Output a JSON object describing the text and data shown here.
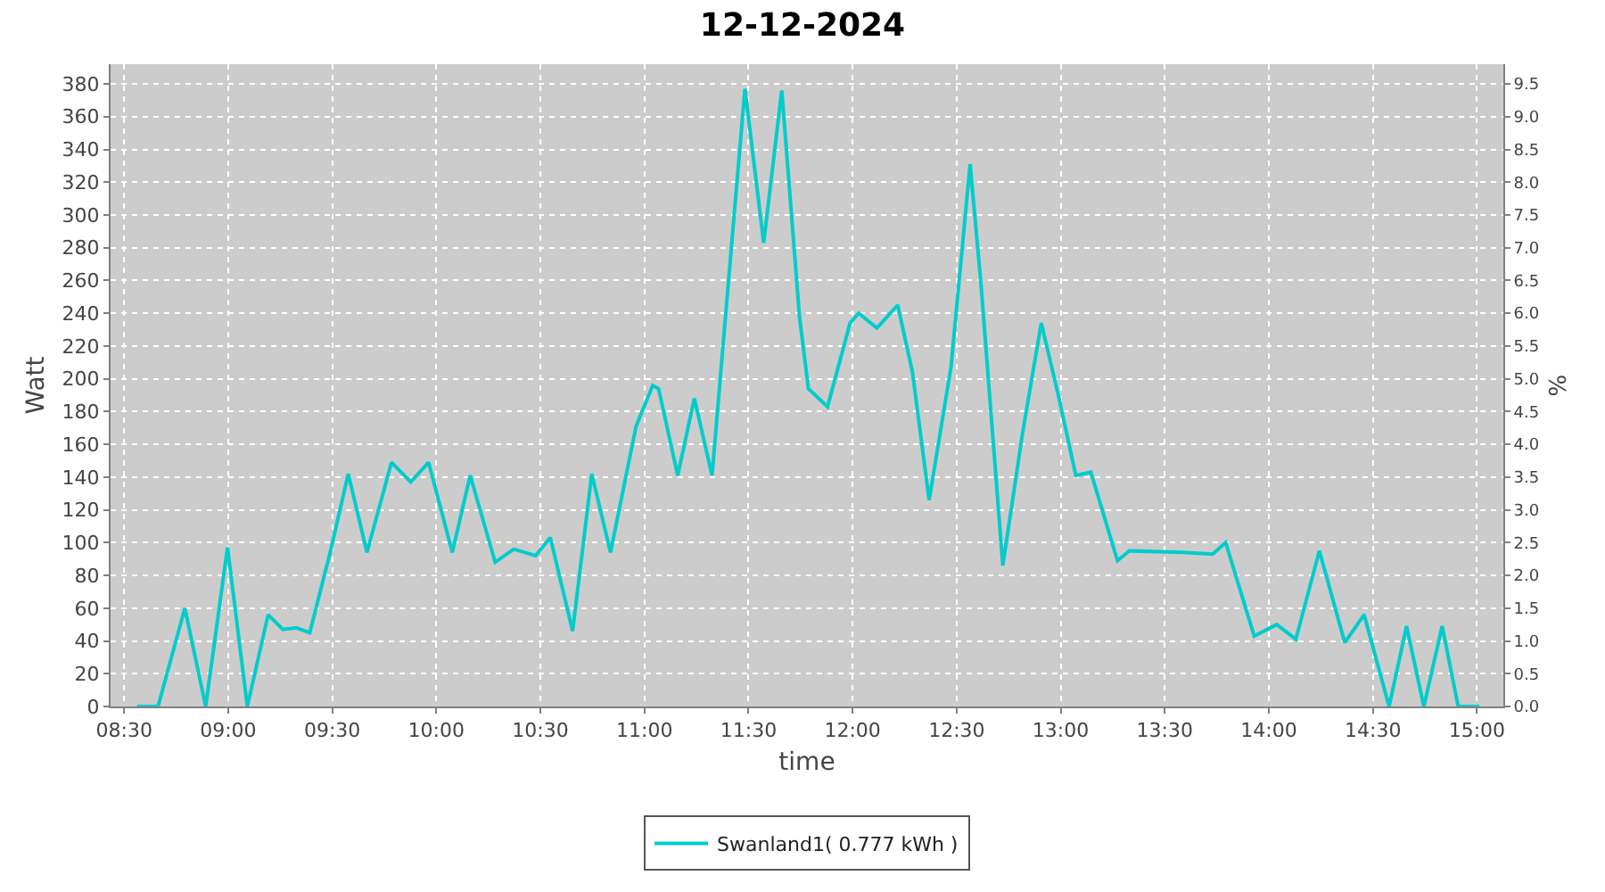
{
  "chart_data": {
    "type": "line",
    "title": "12-12-2024",
    "xlabel": "time",
    "ylabel": "Watt",
    "y2label": "%",
    "xlim": [
      8.435,
      15.127
    ],
    "xticks": [
      {
        "value": 8.5,
        "label": "08:30"
      },
      {
        "value": 9,
        "label": "09:00"
      },
      {
        "value": 9.5,
        "label": "09:30"
      },
      {
        "value": 10,
        "label": "10:00"
      },
      {
        "value": 10.5,
        "label": "10:30"
      },
      {
        "value": 11,
        "label": "11:00"
      },
      {
        "value": 11.5,
        "label": "11:30"
      },
      {
        "value": 12,
        "label": "12:00"
      },
      {
        "value": 12.5,
        "label": "12:30"
      },
      {
        "value": 13,
        "label": "13:00"
      },
      {
        "value": 13.5,
        "label": "13:30"
      },
      {
        "value": 14,
        "label": "14:00"
      },
      {
        "value": 14.5,
        "label": "14:30"
      },
      {
        "value": 15,
        "label": "15:00"
      }
    ],
    "ylim": [
      0,
      392
    ],
    "yticks": [
      0,
      20,
      40,
      60,
      80,
      100,
      120,
      140,
      160,
      180,
      200,
      220,
      240,
      260,
      280,
      300,
      320,
      340,
      360,
      380
    ],
    "y2lim": [
      0,
      9.8
    ],
    "y2ticks": [
      {
        "value": 0,
        "label": "0.0"
      },
      {
        "value": 0.5,
        "label": "0.5"
      },
      {
        "value": 1,
        "label": "1.0"
      },
      {
        "value": 1.5,
        "label": "1.5"
      },
      {
        "value": 2,
        "label": "2.0"
      },
      {
        "value": 2.5,
        "label": "2.5"
      },
      {
        "value": 3,
        "label": "3.0"
      },
      {
        "value": 3.5,
        "label": "3.5"
      },
      {
        "value": 4,
        "label": "4.0"
      },
      {
        "value": 4.5,
        "label": "4.5"
      },
      {
        "value": 5,
        "label": "5.0"
      },
      {
        "value": 5.5,
        "label": "5.5"
      },
      {
        "value": 6,
        "label": "6.0"
      },
      {
        "value": 6.5,
        "label": "6.5"
      },
      {
        "value": 7,
        "label": "7.0"
      },
      {
        "value": 7.5,
        "label": "7.5"
      },
      {
        "value": 8,
        "label": "8.0"
      },
      {
        "value": 8.5,
        "label": "8.5"
      },
      {
        "value": 9,
        "label": "9.0"
      },
      {
        "value": 9.5,
        "label": "9.5"
      }
    ],
    "grid": true,
    "legend": "bottom",
    "marker": "none",
    "line_style": "solid",
    "series": [
      {
        "name": "Swanland1( 0.777 kWh )",
        "color": "#00cccc",
        "x": [
          8.563,
          8.663,
          8.792,
          8.892,
          8.997,
          9.092,
          9.192,
          9.263,
          9.328,
          9.392,
          9.492,
          9.577,
          9.667,
          9.785,
          9.877,
          9.963,
          10.077,
          10.163,
          10.283,
          10.372,
          10.477,
          10.548,
          10.655,
          10.747,
          10.837,
          10.96,
          11.04,
          11.068,
          11.16,
          11.24,
          11.325,
          11.403,
          11.483,
          11.573,
          11.66,
          11.745,
          11.788,
          11.88,
          11.988,
          12.03,
          12.117,
          12.217,
          12.288,
          12.368,
          12.473,
          12.565,
          12.617,
          12.722,
          12.817,
          12.907,
          12.987,
          13.073,
          13.145,
          13.273,
          13.33,
          13.587,
          13.73,
          13.793,
          13.93,
          14.038,
          14.13,
          14.243,
          14.365,
          14.458,
          14.578,
          14.662,
          14.745,
          14.833,
          14.91,
          15.012
        ],
        "values": [
          0,
          0,
          60,
          0,
          97,
          0,
          56,
          47,
          48,
          45,
          95,
          142,
          94,
          149,
          137,
          149,
          94,
          141,
          88,
          96,
          92,
          103,
          46,
          142,
          94,
          171,
          196,
          194,
          141,
          188,
          141,
          258,
          377,
          283,
          376,
          238,
          194,
          183,
          234,
          240,
          231,
          245,
          204,
          126,
          207,
          331,
          258,
          86,
          167,
          234,
          191,
          141,
          143,
          89,
          95,
          94,
          93,
          100,
          43,
          50,
          41,
          95,
          39,
          56,
          0,
          49,
          0,
          49,
          0,
          0
        ]
      }
    ]
  }
}
